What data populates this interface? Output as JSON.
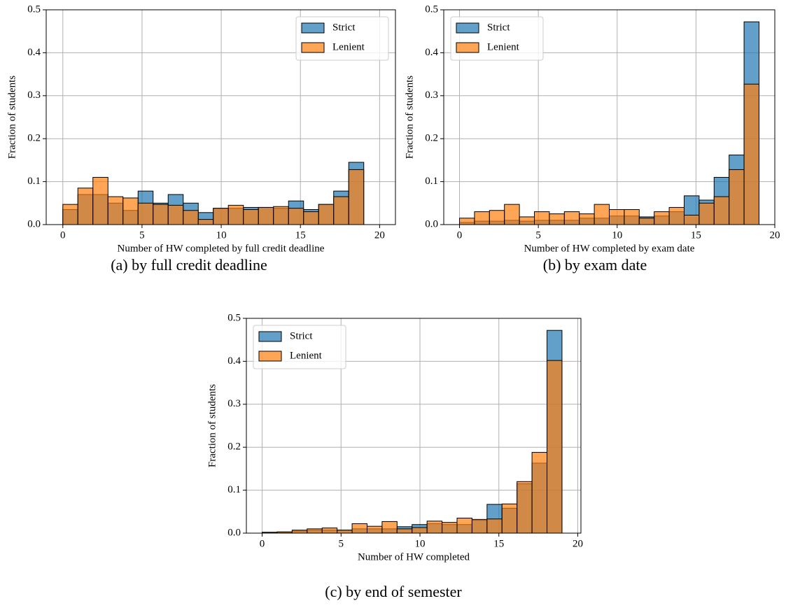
{
  "chart_data": [
    {
      "type": "histogram",
      "caption": "(a) by full credit deadline",
      "xlabel": "Number of HW completed by full credit deadline",
      "ylabel": "Fraction of students",
      "bins": [
        0,
        0.95,
        1.9,
        2.85,
        3.8,
        4.75,
        5.7,
        6.65,
        7.6,
        8.55,
        9.5,
        10.45,
        11.4,
        12.35,
        13.3,
        14.25,
        15.2,
        16.15,
        17.1,
        18.05,
        19
      ],
      "series": [
        {
          "name": "Strict",
          "color": "#1f77b4",
          "values": [
            0.035,
            0.07,
            0.07,
            0.05,
            0.033,
            0.078,
            0.05,
            0.07,
            0.05,
            0.028,
            0.038,
            0.038,
            0.04,
            0.04,
            0.038,
            0.055,
            0.035,
            0.047,
            0.078,
            0.145
          ]
        },
        {
          "name": "Lenient",
          "color": "#ff7f0e",
          "values": [
            0.047,
            0.085,
            0.11,
            0.065,
            0.062,
            0.05,
            0.047,
            0.045,
            0.033,
            0.012,
            0.038,
            0.045,
            0.035,
            0.04,
            0.042,
            0.038,
            0.03,
            0.047,
            0.065,
            0.128
          ]
        }
      ],
      "xlim": [
        -1.05,
        21
      ],
      "ylim": [
        0,
        0.5
      ],
      "xticks": [
        0,
        5,
        10,
        15,
        20
      ],
      "yticks": [
        {
          "value": 0,
          "label": "0.0"
        },
        0.1,
        0.2,
        0.3,
        0.4,
        0.5
      ],
      "grid": true,
      "legend": "upper right",
      "alpha": 0.7
    },
    {
      "type": "histogram",
      "caption": "(b) by exam date",
      "xlabel": "Number of HW completed by exam date",
      "ylabel": "Fraction of students",
      "bins": [
        0,
        0.95,
        1.9,
        2.85,
        3.8,
        4.75,
        5.7,
        6.65,
        7.6,
        8.55,
        9.5,
        10.45,
        11.4,
        12.35,
        13.3,
        14.25,
        15.2,
        16.15,
        17.1,
        18.05,
        19
      ],
      "series": [
        {
          "name": "Strict",
          "color": "#1f77b4",
          "values": [
            0.005,
            0.008,
            0.008,
            0.01,
            0.008,
            0.01,
            0.01,
            0.01,
            0.015,
            0.015,
            0.02,
            0.02,
            0.018,
            0.02,
            0.03,
            0.067,
            0.057,
            0.11,
            0.162,
            0.472
          ]
        },
        {
          "name": "Lenient",
          "color": "#ff7f0e",
          "values": [
            0.015,
            0.03,
            0.033,
            0.047,
            0.018,
            0.03,
            0.025,
            0.03,
            0.025,
            0.047,
            0.035,
            0.035,
            0.015,
            0.03,
            0.04,
            0.022,
            0.05,
            0.065,
            0.128,
            0.327
          ]
        }
      ],
      "xlim": [
        -1,
        20
      ],
      "ylim": [
        0,
        0.5
      ],
      "xticks": [
        0,
        5,
        10,
        15,
        20
      ],
      "yticks": [
        {
          "value": 0,
          "label": "0.0"
        },
        0.1,
        0.2,
        0.3,
        0.4,
        0.5
      ],
      "grid": true,
      "legend": "upper left",
      "alpha": 0.7
    },
    {
      "type": "histogram",
      "caption": "(c) by end of semester",
      "xlabel": "Number of HW completed",
      "ylabel": "Fraction of students",
      "bins": [
        0,
        0.95,
        1.9,
        2.85,
        3.8,
        4.75,
        5.7,
        6.65,
        7.6,
        8.55,
        9.5,
        10.45,
        11.4,
        12.35,
        13.3,
        14.25,
        15.2,
        16.15,
        17.1,
        18.05,
        19
      ],
      "series": [
        {
          "name": "Strict",
          "color": "#1f77b4",
          "values": [
            0.002,
            0.002,
            0.005,
            0.007,
            0.007,
            0.007,
            0.01,
            0.01,
            0.01,
            0.015,
            0.02,
            0.022,
            0.02,
            0.02,
            0.03,
            0.067,
            0.058,
            0.115,
            0.163,
            0.472
          ]
        },
        {
          "name": "Lenient",
          "color": "#ff7f0e",
          "values": [
            0.002,
            0.003,
            0.007,
            0.01,
            0.012,
            0.007,
            0.022,
            0.016,
            0.027,
            0.01,
            0.013,
            0.028,
            0.025,
            0.035,
            0.032,
            0.033,
            0.068,
            0.12,
            0.188,
            0.402
          ]
        }
      ],
      "xlim": [
        -1,
        20.2
      ],
      "ylim": [
        0,
        0.5
      ],
      "xticks": [
        0,
        5,
        10,
        15,
        20
      ],
      "yticks": [
        {
          "value": 0,
          "label": "0.0"
        },
        0.1,
        0.2,
        0.3,
        0.4,
        0.5
      ],
      "grid": true,
      "legend": "upper left",
      "alpha": 0.7
    }
  ]
}
